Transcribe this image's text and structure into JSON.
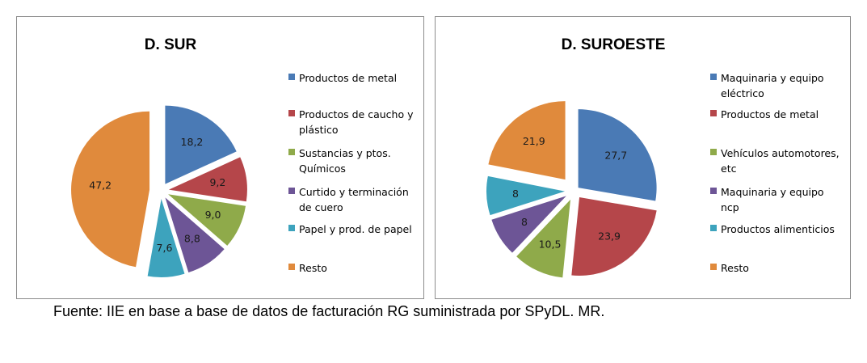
{
  "chart_data": [
    {
      "type": "pie",
      "title": "D. SUR",
      "legend_position": "right",
      "slices": [
        {
          "label": "Productos de metal",
          "value": 18.2,
          "display": "18,2",
          "color": "#4a7ab5"
        },
        {
          "label": "Productos de caucho y plástico",
          "value": 9.2,
          "display": "9,2",
          "color": "#b5464a"
        },
        {
          "label": "Sustancias y ptos. Químicos",
          "value": 9.0,
          "display": "9,0",
          "color": "#8faa4a"
        },
        {
          "label": "Curtido y terminación de cuero",
          "value": 8.8,
          "display": "8,8",
          "color": "#6d5596"
        },
        {
          "label": "Papel y prod. de papel",
          "value": 7.6,
          "display": "7,6",
          "color": "#3da3bd"
        },
        {
          "label": "Resto",
          "value": 47.2,
          "display": "47,2",
          "color": "#e08a3c"
        }
      ]
    },
    {
      "type": "pie",
      "title": "D. SUROESTE",
      "legend_position": "right",
      "slices": [
        {
          "label": "Maquinaria y equipo eléctrico",
          "value": 27.7,
          "display": "27,7",
          "color": "#4a7ab5"
        },
        {
          "label": "Productos de metal",
          "value": 23.9,
          "display": "23,9",
          "color": "#b5464a"
        },
        {
          "label": "Vehículos automotores, etc",
          "value": 10.5,
          "display": "10,5",
          "color": "#8faa4a"
        },
        {
          "label": "Maquinaria y equipo ncp",
          "value": 8,
          "display": "8",
          "color": "#6d5596"
        },
        {
          "label": "Productos alimenticios",
          "value": 8,
          "display": "8",
          "color": "#3da3bd"
        },
        {
          "label": "Resto",
          "value": 21.9,
          "display": "21,9",
          "color": "#e08a3c"
        }
      ]
    }
  ],
  "source_note": "Fuente: IIE en base a base de datos de facturación RG suministrada por SPyDL. MR."
}
